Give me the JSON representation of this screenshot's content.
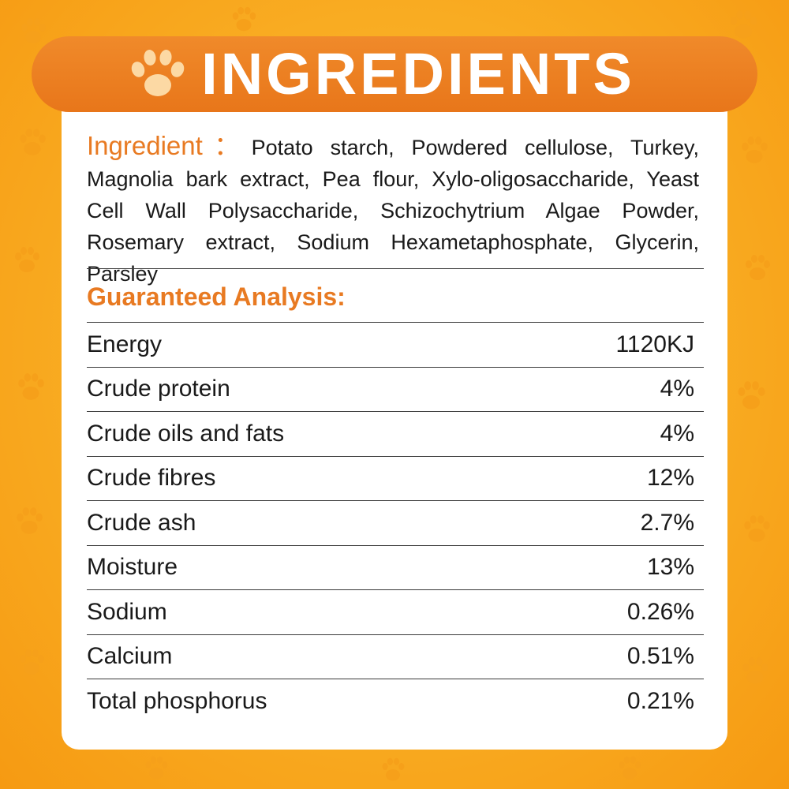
{
  "title": "INGREDIENTS",
  "ingredient": {
    "label": "Ingredient：",
    "text": "Potato starch, Powdered cellulose, Turkey, Magnolia bark extract, Pea flour, Xylo-oligosaccharide, Yeast Cell Wall Polysaccharide, Schizochytrium Algae Powder, Rosemary extract, Sodium Hexametaphosphate, Glycerin, Parsley"
  },
  "analysis": {
    "heading": "Guaranteed Analysis:",
    "rows": [
      {
        "name": "Energy",
        "value": "1120KJ"
      },
      {
        "name": "Crude protein",
        "value": "4%"
      },
      {
        "name": "Crude oils and fats",
        "value": "4%"
      },
      {
        "name": "Crude fibres",
        "value": "12%"
      },
      {
        "name": "Crude ash",
        "value": "2.7%"
      },
      {
        "name": "Moisture",
        "value": "13%"
      },
      {
        "name": "Sodium",
        "value": "0.26%"
      },
      {
        "name": "Calcium",
        "value": "0.51%"
      },
      {
        "name": "Total phosphorus",
        "value": "0.21%"
      }
    ]
  },
  "colors": {
    "accent": "#e87a22",
    "background": "#f9ac22",
    "text": "#1a1a1a"
  },
  "icons": [
    "paw-icon"
  ]
}
